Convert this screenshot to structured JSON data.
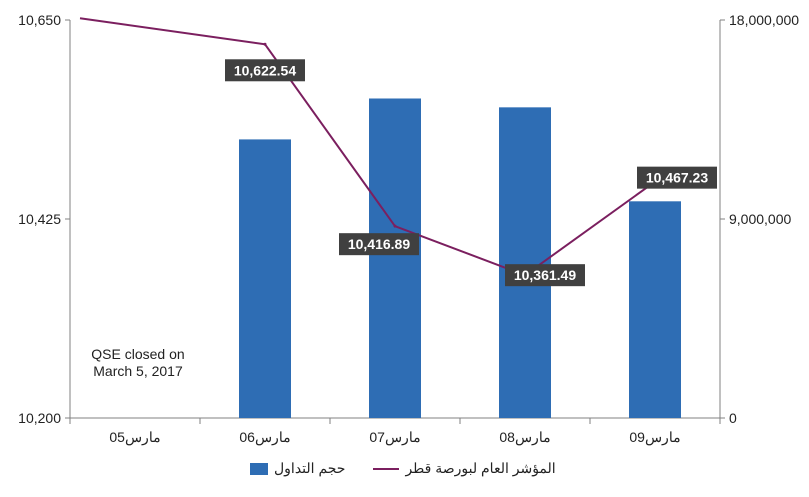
{
  "chart_data": {
    "type": "bar",
    "categories": [
      "مارس05",
      "مارس06",
      "مارس07",
      "مارس08",
      "مارس09"
    ],
    "series": [
      {
        "name": "حجم التداول",
        "type": "bar",
        "axis": "right",
        "color": "#2e6db4",
        "values": [
          null,
          12600000,
          14450000,
          14050000,
          9800000
        ]
      },
      {
        "name": "المؤشر العام لبورصة قطر",
        "type": "line",
        "axis": "left",
        "color": "#7b1f5f",
        "values": [
          10652,
          10622.54,
          10416.89,
          10361.49,
          10467.23
        ],
        "data_labels": [
          null,
          "10,622.54",
          "10,416.89",
          "10,361.49",
          "10,467.23"
        ]
      }
    ],
    "y_left": {
      "ylim": [
        10200,
        10650
      ],
      "ticks": [
        "10,200",
        "10,425",
        "10,650"
      ]
    },
    "y_right": {
      "ylim": [
        0,
        18000000
      ],
      "ticks": [
        "0",
        "9,000,000",
        "18,000,000"
      ]
    },
    "annotation": "QSE closed on March 5, 2017",
    "legend_position": "bottom",
    "grid": false
  }
}
